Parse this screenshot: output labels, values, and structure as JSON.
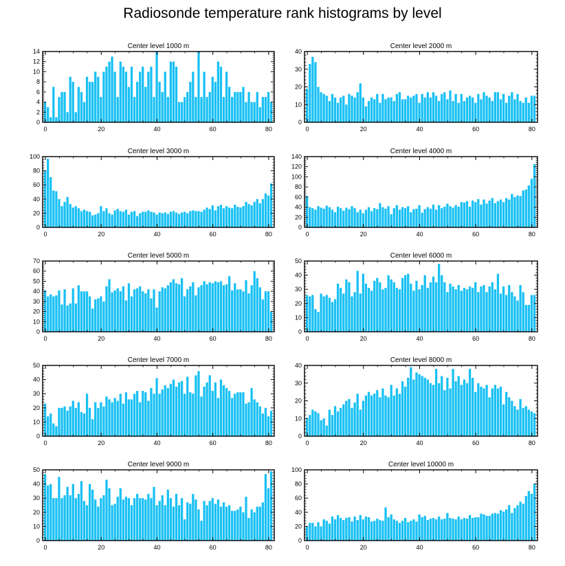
{
  "figure": {
    "title": "Radiosonde temperature rank histograms by level"
  },
  "colors": {
    "bar": "#18c0f4",
    "bar_edge": "#0aa4d8",
    "frame": "#000000",
    "background": "#ffffff"
  },
  "chart_data": [
    {
      "type": "bar",
      "title": "Center level 1000 m",
      "xlim": [
        -1,
        82
      ],
      "ylim": [
        0,
        14
      ],
      "xticks": [
        0,
        20,
        40,
        60,
        80
      ],
      "yticks": [
        0,
        2,
        4,
        6,
        8,
        10,
        12,
        14
      ],
      "values": [
        4,
        3,
        1,
        7,
        1,
        5,
        6,
        6,
        2,
        9,
        8,
        2,
        7,
        6,
        4,
        9,
        8,
        8,
        10,
        9,
        5,
        10,
        11,
        12,
        13,
        10,
        5,
        12,
        11,
        10,
        7,
        11,
        5,
        8,
        10,
        11,
        7,
        10,
        11,
        5,
        14,
        8,
        6,
        10,
        5,
        12,
        12,
        11,
        4,
        4,
        5,
        6,
        8,
        10,
        5,
        14,
        5,
        10,
        5,
        6,
        9,
        8,
        12,
        11,
        5,
        10,
        7,
        5,
        6,
        6,
        6,
        7,
        4,
        6,
        4,
        4,
        6,
        3,
        5,
        5,
        6,
        4
      ]
    },
    {
      "type": "bar",
      "title": "Center level 2000 m",
      "xlim": [
        -1,
        82
      ],
      "ylim": [
        0,
        40
      ],
      "xticks": [
        0,
        20,
        40,
        60,
        80
      ],
      "yticks": [
        0,
        10,
        20,
        30,
        40
      ],
      "values": [
        19,
        33,
        37,
        34,
        20,
        17,
        16,
        15,
        12,
        16,
        14,
        11,
        14,
        15,
        10,
        16,
        15,
        14,
        17,
        22,
        14,
        9,
        12,
        14,
        13,
        16,
        11,
        16,
        13,
        14,
        14,
        12,
        16,
        17,
        13,
        13,
        15,
        14,
        15,
        16,
        11,
        16,
        14,
        17,
        14,
        17,
        15,
        12,
        16,
        17,
        13,
        18,
        12,
        16,
        11,
        16,
        12,
        14,
        15,
        14,
        11,
        16,
        13,
        17,
        15,
        14,
        12,
        17,
        17,
        13,
        16,
        11,
        15,
        17,
        13,
        16,
        12,
        11,
        14,
        11,
        15,
        15
      ]
    },
    {
      "type": "bar",
      "title": "Center level 3000 m",
      "xlim": [
        -1,
        82
      ],
      "ylim": [
        0,
        100
      ],
      "xticks": [
        0,
        20,
        40,
        60,
        80
      ],
      "yticks": [
        0,
        20,
        40,
        60,
        80,
        100
      ],
      "values": [
        80,
        97,
        71,
        52,
        51,
        40,
        30,
        36,
        43,
        33,
        28,
        30,
        27,
        23,
        25,
        23,
        22,
        17,
        18,
        20,
        30,
        23,
        27,
        20,
        18,
        24,
        26,
        23,
        22,
        25,
        18,
        22,
        23,
        16,
        20,
        22,
        22,
        24,
        22,
        21,
        18,
        21,
        20,
        21,
        19,
        22,
        23,
        21,
        19,
        21,
        22,
        20,
        23,
        24,
        23,
        23,
        22,
        25,
        28,
        26,
        31,
        24,
        30,
        32,
        27,
        30,
        28,
        27,
        32,
        29,
        28,
        30,
        36,
        33,
        31,
        36,
        40,
        34,
        40,
        48,
        45,
        62
      ]
    },
    {
      "type": "bar",
      "title": "Center level 4000 m",
      "xlim": [
        -1,
        82
      ],
      "ylim": [
        0,
        140
      ],
      "xticks": [
        0,
        20,
        40,
        60,
        80
      ],
      "yticks": [
        0,
        20,
        40,
        60,
        80,
        100,
        120,
        140
      ],
      "values": [
        62,
        40,
        38,
        35,
        42,
        39,
        37,
        43,
        40,
        35,
        30,
        41,
        38,
        33,
        39,
        36,
        42,
        38,
        30,
        35,
        28,
        35,
        40,
        32,
        38,
        36,
        48,
        40,
        37,
        42,
        26,
        38,
        44,
        35,
        40,
        38,
        42,
        30,
        36,
        37,
        44,
        29,
        36,
        40,
        37,
        45,
        35,
        44,
        38,
        41,
        47,
        42,
        39,
        44,
        41,
        50,
        49,
        52,
        41,
        53,
        50,
        56,
        45,
        55,
        47,
        53,
        58,
        48,
        52,
        55,
        50,
        58,
        55,
        66,
        60,
        63,
        62,
        73,
        75,
        83,
        96,
        125
      ]
    },
    {
      "type": "bar",
      "title": "Center level 5000 m",
      "xlim": [
        -1,
        82
      ],
      "ylim": [
        0,
        70
      ],
      "xticks": [
        0,
        20,
        40,
        60,
        80
      ],
      "yticks": [
        0,
        10,
        20,
        30,
        40,
        50,
        60,
        70
      ],
      "values": [
        41,
        35,
        37,
        35,
        36,
        41,
        27,
        42,
        26,
        28,
        43,
        28,
        46,
        40,
        40,
        40,
        35,
        23,
        32,
        33,
        35,
        30,
        45,
        52,
        39,
        41,
        43,
        40,
        45,
        31,
        48,
        35,
        42,
        43,
        45,
        40,
        38,
        42,
        33,
        42,
        24,
        40,
        44,
        43,
        46,
        49,
        52,
        48,
        47,
        53,
        35,
        42,
        45,
        49,
        36,
        44,
        46,
        50,
        47,
        49,
        48,
        50,
        49,
        50,
        46,
        47,
        55,
        41,
        48,
        42,
        42,
        40,
        51,
        38,
        46,
        60,
        53,
        44,
        32,
        40,
        40,
        20
      ]
    },
    {
      "type": "bar",
      "title": "Center level 6000 m",
      "xlim": [
        -1,
        82
      ],
      "ylim": [
        0,
        50
      ],
      "xticks": [
        0,
        20,
        40,
        60,
        80
      ],
      "yticks": [
        0,
        10,
        20,
        30,
        40,
        50
      ],
      "values": [
        26,
        25,
        26,
        16,
        14,
        27,
        25,
        26,
        24,
        21,
        23,
        34,
        31,
        27,
        37,
        35,
        25,
        28,
        43,
        27,
        41,
        34,
        31,
        29,
        36,
        38,
        35,
        30,
        31,
        40,
        37,
        35,
        31,
        30,
        38,
        40,
        41,
        34,
        29,
        36,
        30,
        33,
        40,
        31,
        35,
        39,
        35,
        48,
        40,
        35,
        28,
        34,
        32,
        30,
        33,
        29,
        31,
        30,
        32,
        31,
        35,
        28,
        32,
        33,
        28,
        32,
        35,
        30,
        41,
        27,
        32,
        26,
        33,
        28,
        25,
        22,
        33,
        28,
        19,
        19,
        26,
        26
      ]
    },
    {
      "type": "bar",
      "title": "Center level 7000 m",
      "xlim": [
        -1,
        82
      ],
      "ylim": [
        0,
        50
      ],
      "xticks": [
        0,
        20,
        40,
        60,
        80
      ],
      "yticks": [
        0,
        10,
        20,
        30,
        40,
        50
      ],
      "values": [
        23,
        14,
        16,
        9,
        7,
        20,
        20,
        21,
        18,
        21,
        25,
        20,
        24,
        17,
        16,
        30,
        20,
        12,
        24,
        20,
        24,
        21,
        28,
        26,
        24,
        27,
        25,
        30,
        23,
        31,
        26,
        26,
        30,
        32,
        24,
        32,
        31,
        25,
        34,
        30,
        41,
        30,
        33,
        36,
        34,
        37,
        40,
        35,
        38,
        39,
        30,
        42,
        31,
        30,
        43,
        46,
        28,
        35,
        38,
        43,
        32,
        38,
        27,
        40,
        36,
        34,
        32,
        27,
        30,
        31,
        31,
        31,
        23,
        24,
        34,
        26,
        24,
        21,
        16,
        20,
        14,
        18
      ]
    },
    {
      "type": "bar",
      "title": "Center level 8000 m",
      "xlim": [
        -1,
        82
      ],
      "ylim": [
        0,
        40
      ],
      "xticks": [
        0,
        20,
        40,
        60,
        80
      ],
      "yticks": [
        0,
        10,
        20,
        30,
        40
      ],
      "values": [
        10,
        12,
        15,
        14,
        13,
        9,
        10,
        6,
        15,
        12,
        17,
        14,
        16,
        18,
        20,
        21,
        16,
        19,
        24,
        15,
        20,
        23,
        25,
        23,
        24,
        26,
        22,
        27,
        23,
        22,
        29,
        23,
        27,
        24,
        31,
        28,
        33,
        39,
        32,
        36,
        35,
        34,
        33,
        32,
        30,
        29,
        38,
        30,
        34,
        26,
        33,
        27,
        38,
        31,
        34,
        29,
        32,
        30,
        38,
        33,
        25,
        30,
        28,
        27,
        29,
        22,
        27,
        29,
        27,
        28,
        18,
        25,
        22,
        20,
        17,
        15,
        21,
        16,
        17,
        15,
        14,
        13
      ]
    },
    {
      "type": "bar",
      "title": "Center level 9000 m",
      "xlim": [
        -1,
        82
      ],
      "ylim": [
        0,
        50
      ],
      "xticks": [
        0,
        20,
        40,
        60,
        80
      ],
      "yticks": [
        0,
        10,
        20,
        30,
        40,
        50
      ],
      "values": [
        47,
        39,
        40,
        30,
        30,
        45,
        30,
        32,
        38,
        32,
        40,
        30,
        33,
        42,
        28,
        25,
        40,
        36,
        29,
        24,
        30,
        32,
        43,
        37,
        25,
        26,
        31,
        37,
        29,
        31,
        30,
        25,
        30,
        33,
        30,
        30,
        29,
        33,
        30,
        38,
        25,
        28,
        32,
        25,
        36,
        30,
        24,
        33,
        25,
        30,
        15,
        27,
        26,
        33,
        29,
        22,
        14,
        28,
        25,
        28,
        30,
        26,
        29,
        24,
        27,
        24,
        25,
        21,
        21,
        22,
        24,
        20,
        31,
        16,
        22,
        20,
        24,
        24,
        27,
        47,
        37,
        49
      ]
    },
    {
      "type": "bar",
      "title": "Center level 10000 m",
      "xlim": [
        -1,
        82
      ],
      "ylim": [
        0,
        100
      ],
      "xticks": [
        0,
        20,
        40,
        60,
        80
      ],
      "yticks": [
        0,
        20,
        40,
        60,
        80,
        100
      ],
      "values": [
        20,
        25,
        25,
        20,
        26,
        20,
        30,
        28,
        24,
        34,
        30,
        36,
        32,
        29,
        32,
        33,
        27,
        34,
        29,
        36,
        30,
        34,
        33,
        27,
        28,
        31,
        29,
        28,
        47,
        33,
        37,
        30,
        28,
        25,
        28,
        32,
        26,
        28,
        30,
        27,
        37,
        33,
        35,
        29,
        31,
        32,
        30,
        34,
        30,
        31,
        39,
        32,
        31,
        30,
        34,
        30,
        32,
        31,
        36,
        32,
        33,
        33,
        38,
        37,
        35,
        35,
        38,
        39,
        38,
        43,
        41,
        44,
        50,
        39,
        46,
        50,
        55,
        52,
        63,
        70,
        66,
        80
      ]
    }
  ]
}
